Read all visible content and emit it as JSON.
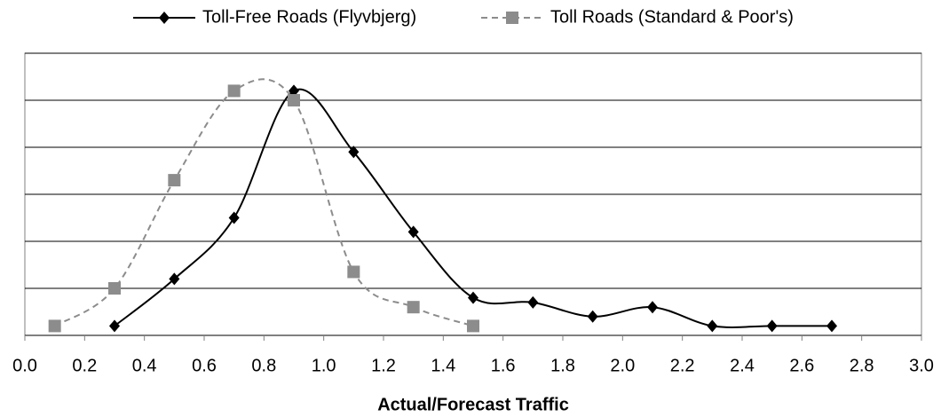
{
  "chart_data": {
    "type": "line",
    "x_label": "Actual/Forecast Traffic",
    "xlim": [
      0,
      3
    ],
    "xticks": [
      {
        "value": 0,
        "label": "0.0"
      },
      0.2,
      0.4,
      0.6,
      0.8,
      {
        "value": 1,
        "label": "1.0"
      },
      1.2,
      1.4,
      1.6,
      1.8,
      {
        "value": 2,
        "label": "2.0"
      },
      2.2,
      2.4,
      2.6,
      2.8,
      {
        "value": 3,
        "label": "3.0"
      }
    ],
    "ylim": [
      0,
      6
    ],
    "yticks": [
      0,
      1,
      2,
      3,
      4,
      5,
      6
    ],
    "grid": true,
    "legend": "top",
    "series": [
      {
        "name": "Toll-Free Roads (Flyvbjerg)",
        "color": "#000000",
        "marker": "diamond",
        "dash": "solid",
        "x": [
          0.3,
          0.5,
          0.7,
          0.9,
          1.1,
          1.3,
          1.5,
          1.7,
          1.9,
          2.1,
          2.3,
          2.5,
          2.7
        ],
        "values": [
          0.2,
          1.2,
          2.5,
          5.2,
          3.9,
          2.2,
          0.8,
          0.7,
          0.4,
          0.6,
          0.2,
          0.2,
          0.2
        ]
      },
      {
        "name": "Toll Roads (Standard & Poor's)",
        "color": "#8c8c8c",
        "marker": "square",
        "dash": "dashed",
        "x": [
          0.1,
          0.3,
          0.5,
          0.7,
          0.9,
          1.1,
          1.3,
          1.5
        ],
        "values": [
          0.2,
          1.0,
          3.3,
          5.2,
          5.0,
          1.35,
          0.6,
          0.2
        ]
      }
    ]
  }
}
